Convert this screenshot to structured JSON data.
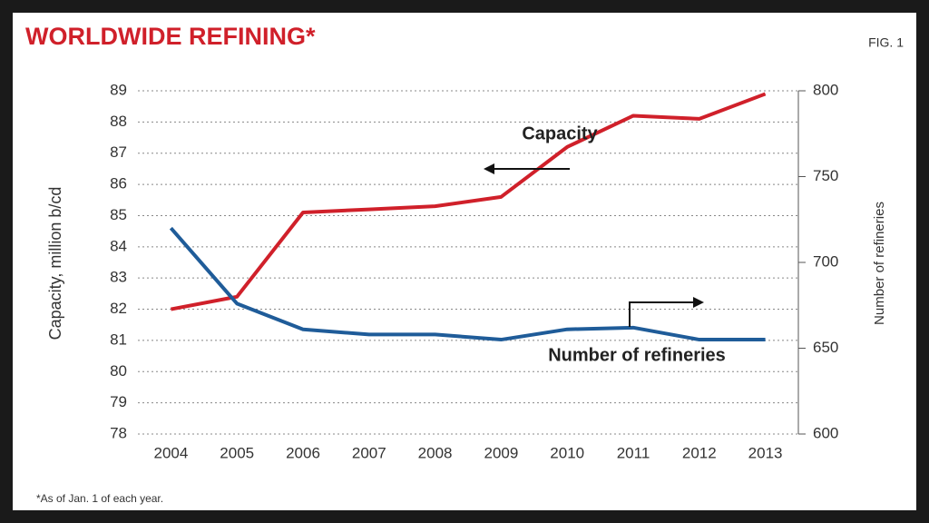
{
  "chart_data": {
    "type": "line",
    "title": "WORLDWIDE REFINING*",
    "fig_label": "FIG. 1",
    "footnote": "*As of Jan. 1 of each year.",
    "ylabel": "Capacity, million b/cd",
    "y2label": "Number of refineries",
    "categories": [
      "2004",
      "2005",
      "2006",
      "2007",
      "2008",
      "2009",
      "2010",
      "2011",
      "2012",
      "2013"
    ],
    "series": [
      {
        "name": "Capacity",
        "color": "#d0202a",
        "values": [
          82.0,
          82.4,
          85.1,
          85.2,
          85.3,
          85.6,
          87.2,
          88.2,
          88.1,
          88.9
        ]
      },
      {
        "name": "Number of refineries",
        "color": "#1f5c99",
        "axis": "y2",
        "values": [
          720,
          676,
          661,
          658,
          658,
          655,
          661,
          662,
          655,
          655
        ]
      }
    ],
    "ylim": [
      78,
      89
    ],
    "yticks": [
      78,
      79,
      80,
      81,
      82,
      83,
      84,
      85,
      86,
      87,
      88,
      89
    ],
    "y2lim": [
      600,
      800
    ],
    "y2ticks": [
      600,
      650,
      700,
      750,
      800
    ],
    "grid": true
  }
}
